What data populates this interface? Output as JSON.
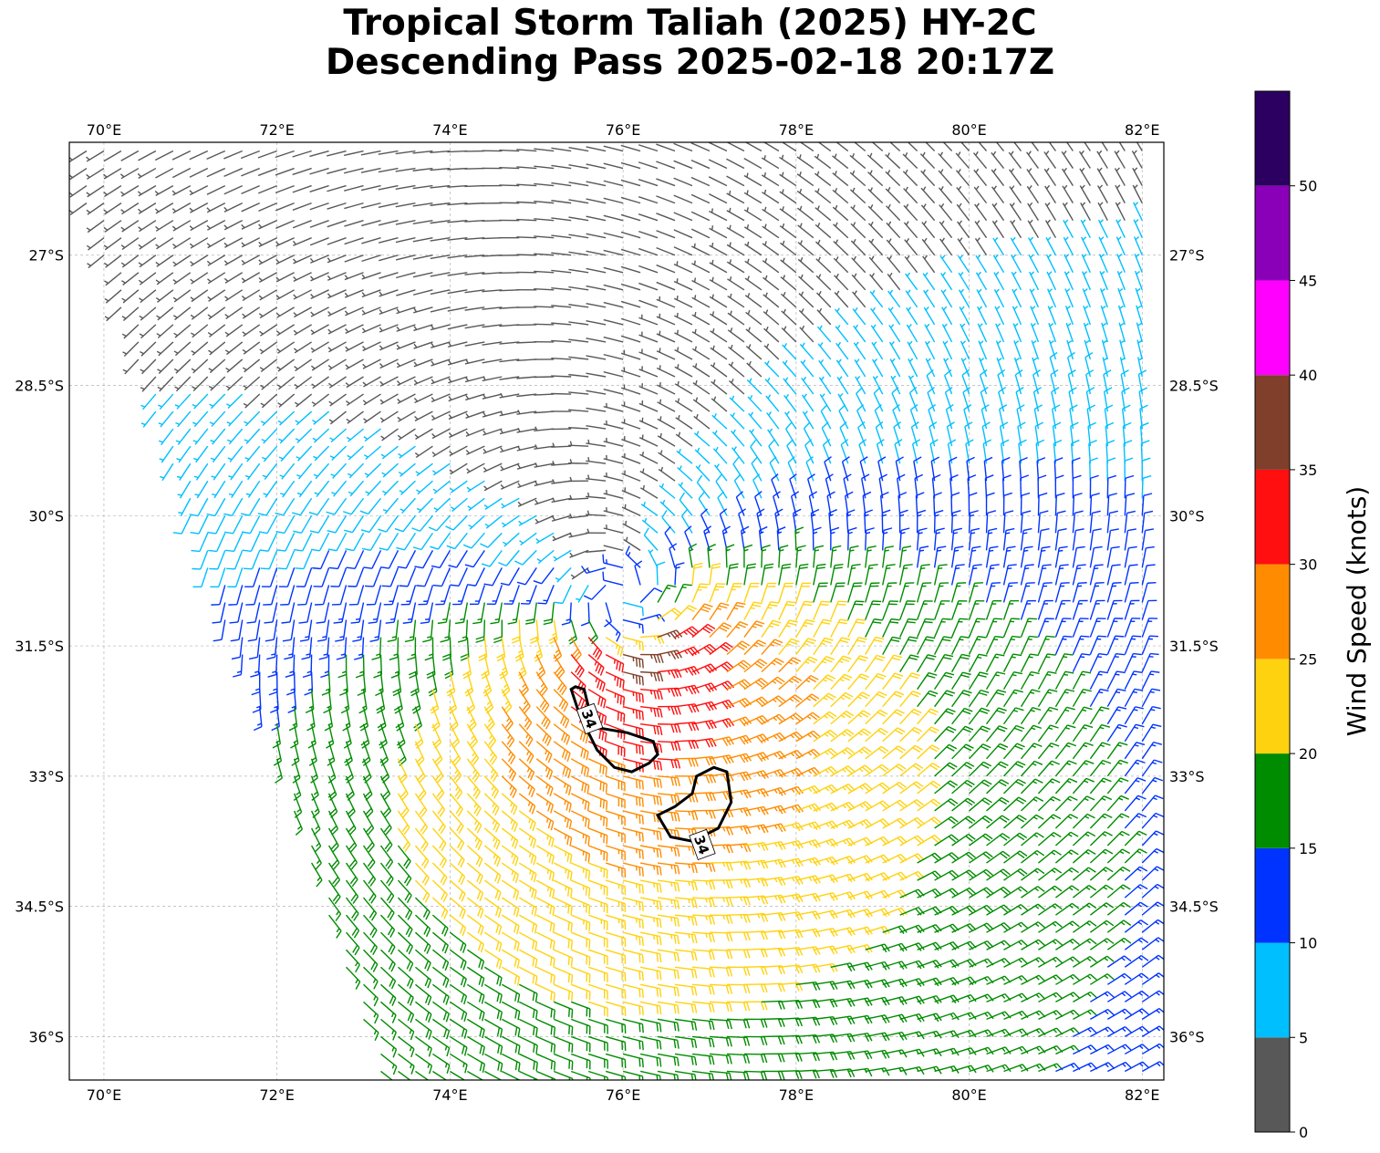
{
  "title_line1": "Tropical Storm Taliah (2025) HY-2C",
  "title_line2": "Descending Pass 2025-02-18 20:17Z",
  "map": {
    "lon_range": [
      69.6,
      82.25
    ],
    "lat_range": [
      -36.5,
      -25.7
    ],
    "lon_ticks": [
      70,
      72,
      74,
      76,
      78,
      80,
      82
    ],
    "lon_tick_labels": [
      "70°E",
      "72°E",
      "74°E",
      "76°E",
      "78°E",
      "80°E",
      "82°E"
    ],
    "lat_ticks": [
      -27,
      -28.5,
      -30,
      -31.5,
      -33,
      -34.5,
      -36
    ],
    "lat_tick_labels": [
      "27°S",
      "28.5°S",
      "30°S",
      "31.5°S",
      "33°S",
      "34.5°S",
      "36°S"
    ],
    "grid": true,
    "storm_center": {
      "lon": 76.0,
      "lat": -30.9
    },
    "contour_34kt": {
      "label": "34",
      "regions": [
        [
          [
            75.4,
            -32.0
          ],
          [
            75.5,
            -32.3
          ],
          [
            75.7,
            -32.7
          ],
          [
            75.9,
            -32.9
          ],
          [
            76.1,
            -32.95
          ],
          [
            76.3,
            -32.85
          ],
          [
            76.4,
            -32.75
          ],
          [
            76.35,
            -32.6
          ],
          [
            76.05,
            -32.5
          ],
          [
            75.75,
            -32.45
          ],
          [
            75.6,
            -32.2
          ],
          [
            75.55,
            -32.0
          ],
          [
            75.45,
            -31.97
          ]
        ],
        [
          [
            76.55,
            -33.7
          ],
          [
            76.8,
            -33.75
          ],
          [
            77.1,
            -33.6
          ],
          [
            77.25,
            -33.3
          ],
          [
            77.2,
            -32.95
          ],
          [
            77.05,
            -32.9
          ],
          [
            76.85,
            -33.0
          ],
          [
            76.8,
            -33.2
          ],
          [
            76.6,
            -33.35
          ],
          [
            76.4,
            -33.45
          ]
        ]
      ]
    }
  },
  "colorbar": {
    "label": "Wind Speed (knots)",
    "ticks": [
      0,
      5,
      10,
      15,
      20,
      25,
      30,
      35,
      40,
      45,
      50
    ],
    "max": 55,
    "bins": [
      {
        "from": 0,
        "to": 5,
        "color": "#585858"
      },
      {
        "from": 5,
        "to": 10,
        "color": "#00bfff"
      },
      {
        "from": 10,
        "to": 15,
        "color": "#0033ff"
      },
      {
        "from": 15,
        "to": 20,
        "color": "#008c00"
      },
      {
        "from": 20,
        "to": 25,
        "color": "#ffd20f"
      },
      {
        "from": 25,
        "to": 30,
        "color": "#ff8c00"
      },
      {
        "from": 30,
        "to": 35,
        "color": "#ff0f0f"
      },
      {
        "from": 35,
        "to": 40,
        "color": "#7f3f2a"
      },
      {
        "from": 40,
        "to": 45,
        "color": "#ff00ff"
      },
      {
        "from": 45,
        "to": 50,
        "color": "#8a00b8"
      },
      {
        "from": 50,
        "to": 55,
        "color": "#2c0060"
      }
    ]
  }
}
